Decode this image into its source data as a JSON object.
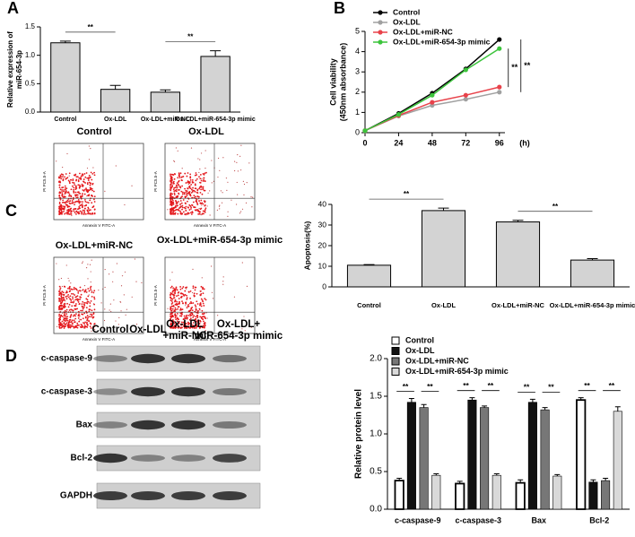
{
  "chart_data": [
    {
      "type": "bar",
      "label": "A",
      "y_label": [
        "Relative expression of",
        "miR-654-3p"
      ],
      "categories": [
        "Control",
        "Ox-LDL",
        "Ox-LDL+miR-NC",
        "Ox-LDL+miR-654-3p mimic"
      ],
      "values": [
        1.22,
        0.4,
        0.35,
        0.98
      ],
      "errors": [
        0.03,
        0.07,
        0.04,
        0.1
      ],
      "color": "#d3d3d3",
      "ylim": [
        0,
        1.5
      ],
      "yticks": [
        {
          "value": 0,
          "label": "0.0"
        },
        0.5,
        {
          "value": 1,
          "label": "1.0"
        },
        1.5
      ],
      "annotations": [
        "**",
        "**"
      ]
    },
    {
      "type": "line",
      "label": "B",
      "y_label": [
        "Cell viability",
        "(450nm absorbance)"
      ],
      "x_label": "(h)",
      "x": [
        0,
        24,
        48,
        72,
        96
      ],
      "xlim": [
        0,
        100
      ],
      "xticks": [
        0,
        24,
        48,
        72,
        96
      ],
      "ylim": [
        0,
        5
      ],
      "yticks": [
        0,
        1,
        2,
        3,
        4,
        5
      ],
      "series": [
        {
          "name": "Control",
          "color": "#000000",
          "values": [
            0.1,
            0.95,
            1.95,
            3.15,
            4.6
          ]
        },
        {
          "name": "Ox-LDL",
          "color": "#a0a0a0",
          "values": [
            0.1,
            0.82,
            1.35,
            1.65,
            2.0
          ]
        },
        {
          "name": "Ox-LDL+miR-NC",
          "color": "#e8424a",
          "values": [
            0.1,
            0.85,
            1.5,
            1.85,
            2.25
          ]
        },
        {
          "name": "Ox-LDL+miR-654-3p mimic",
          "color": "#3cc43c",
          "values": [
            0.1,
            0.9,
            1.85,
            3.1,
            4.15
          ]
        }
      ],
      "annotations": [
        "**",
        "**"
      ]
    },
    {
      "type": "bar",
      "label": "C",
      "y_label": [
        "Apoptosis(%)"
      ],
      "categories": [
        "Control",
        "Ox-LDL",
        "Ox-LDL+miR-NC",
        "Ox-LDL+miR-654-3p mimic"
      ],
      "values": [
        10.5,
        37,
        31.5,
        13
      ],
      "errors": [
        0.3,
        1.2,
        0.8,
        0.7
      ],
      "color": "#d3d3d3",
      "ylim": [
        0,
        40
      ],
      "yticks": [
        0,
        10,
        20,
        30,
        40
      ],
      "annotations": [
        "**",
        "**"
      ]
    },
    {
      "type": "grouped_bar",
      "label": "D",
      "y_label": [
        "Relative protein level"
      ],
      "categories": [
        "c-caspase-9",
        "c-caspase-3",
        "Bax",
        "Bcl-2"
      ],
      "series": [
        {
          "name": "Control",
          "color": "#ffffff",
          "values": [
            0.38,
            0.34,
            0.35,
            1.45
          ],
          "errors": [
            0.03,
            0.03,
            0.04,
            0.03
          ]
        },
        {
          "name": "Ox-LDL",
          "color": "#111111",
          "values": [
            1.42,
            1.45,
            1.42,
            0.36
          ],
          "errors": [
            0.05,
            0.03,
            0.04,
            0.03
          ]
        },
        {
          "name": "Ox-LDL+miR-NC",
          "color": "#777777",
          "values": [
            1.35,
            1.35,
            1.32,
            0.38
          ],
          "errors": [
            0.04,
            0.02,
            0.03,
            0.03
          ]
        },
        {
          "name": "Ox-LDL+miR-654-3p mimic",
          "color": "#d9d9d9",
          "values": [
            0.45,
            0.45,
            0.44,
            1.3
          ],
          "errors": [
            0.02,
            0.02,
            0.02,
            0.06
          ]
        }
      ],
      "ylim": [
        0,
        2
      ],
      "yticks": [
        {
          "value": 0,
          "label": "0.0"
        },
        0.5,
        {
          "value": 1,
          "label": "1.0"
        },
        1.5,
        {
          "value": 2,
          "label": "2.0"
        }
      ],
      "annotations": [
        "**",
        "**",
        "**",
        "**",
        "**",
        "**",
        "**",
        "**"
      ]
    }
  ],
  "flow_cytometry": {
    "x_label": "Annexin V FITC-A",
    "y_label": "PI PC5.5-A",
    "plots": [
      {
        "title": "Control"
      },
      {
        "title": "Ox-LDL"
      },
      {
        "title": "Ox-LDL+miR-NC"
      },
      {
        "title": "Ox-LDL+miR-654-3p mimic"
      }
    ]
  },
  "western_blot": {
    "lanes": [
      [
        "Control"
      ],
      [
        "Ox-LDL"
      ],
      [
        "Ox-LDL",
        "+miR-NC"
      ],
      [
        "Ox-LDL+",
        "miR-654-3p mimic"
      ]
    ],
    "proteins": [
      "c-caspase-9",
      "c-caspase-3",
      "Bax",
      "Bcl-2",
      "GAPDH"
    ]
  }
}
